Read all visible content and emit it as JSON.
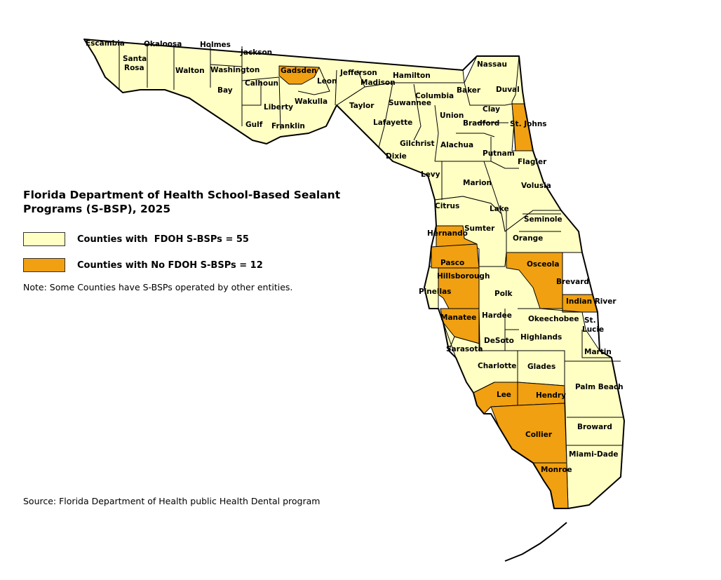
{
  "title_line1": "Florida Department of Health School-Based Sealant",
  "title_line2": "Programs (S-BSP), 2025",
  "legend": {
    "with_label": "Counties with  FDOH S-BSPs = 55",
    "without_label": "Counties with No FDOH S-BSPs = 12",
    "with_color": "#ffffc4",
    "without_color": "#f0a010"
  },
  "note": "Note: Some Counties have S-BSPs operated by other entities.",
  "source": "Source: Florida Department of Health public Health Dental program",
  "counties_with_program": [
    "Escambia",
    "Santa Rosa",
    "Okaloosa",
    "Walton",
    "Holmes",
    "Washington",
    "Jackson",
    "Bay",
    "Calhoun",
    "Liberty",
    "Gulf",
    "Franklin",
    "Wakulla",
    "Leon",
    "Jefferson",
    "Madison",
    "Hamilton",
    "Taylor",
    "Lafayette",
    "Suwannee",
    "Columbia",
    "Baker",
    "Nassau",
    "Duval",
    "Clay",
    "Union",
    "Bradford",
    "Dixie",
    "Gilchrist",
    "Alachua",
    "Putnam",
    "Flagler",
    "Levy",
    "Marion",
    "Volusia",
    "Citrus",
    "Lake",
    "Sumter",
    "Seminole",
    "Orange",
    "Brevard",
    "Polk",
    "Pinellas",
    "Hardee",
    "Okeechobee",
    "St. Lucie",
    "DeSoto",
    "Highlands",
    "Sarasota",
    "Charlotte",
    "Glades",
    "Martin",
    "Palm Beach",
    "Broward",
    "Miami-Dade"
  ],
  "counties_without_program": [
    "Gadsden",
    "St. Johns",
    "Hernando",
    "Pasco",
    "Hillsborough",
    "Manatee",
    "Osceola",
    "Indian River",
    "Lee",
    "Hendry",
    "Collier",
    "Monroe"
  ],
  "labels": {
    "escambia": "Escambia",
    "santa_rosa_1": "Santa",
    "santa_rosa_2": "Rosa",
    "okaloosa": "Okaloosa",
    "walton": "Walton",
    "holmes": "Holmes",
    "washington": "Washington",
    "jackson": "Jackson",
    "bay": "Bay",
    "calhoun": "Calhoun",
    "liberty": "Liberty",
    "gulf": "Gulf",
    "franklin": "Franklin",
    "gadsden": "Gadsden",
    "wakulla": "Wakulla",
    "leon": "Leon",
    "jefferson": "Jefferson",
    "madison": "Madison",
    "hamilton": "Hamilton",
    "taylor": "Taylor",
    "lafayette": "Lafayette",
    "suwannee": "Suwannee",
    "columbia": "Columbia",
    "baker": "Baker",
    "nassau": "Nassau",
    "duval": "Duval",
    "clay": "Clay",
    "union": "Union",
    "bradford": "Bradford",
    "st_johns": "St. Johns",
    "dixie": "Dixie",
    "gilchrist": "Gilchrist",
    "alachua": "Alachua",
    "putnam": "Putnam",
    "flagler": "Flagler",
    "levy": "Levy",
    "marion": "Marion",
    "volusia": "Volusia",
    "citrus": "Citrus",
    "lake": "Lake",
    "hernando": "Hernando",
    "sumter": "Sumter",
    "seminole": "Seminole",
    "orange": "Orange",
    "pasco": "Pasco",
    "osceola": "Osceola",
    "hillsborough": "Hillsborough",
    "brevard": "Brevard",
    "pinellas": "Pinellas",
    "polk": "Polk",
    "indian_river": "Indian River",
    "manatee": "Manatee",
    "hardee": "Hardee",
    "okeechobee": "Okeechobee",
    "st_lucie_1": "St.",
    "st_lucie_2": "Lucie",
    "highlands": "Highlands",
    "desoto": "DeSoto",
    "sarasota": "Sarasota",
    "martin": "Martin",
    "charlotte": "Charlotte",
    "glades": "Glades",
    "palm_beach": "Palm Beach",
    "lee": "Lee",
    "hendry": "Hendry",
    "broward": "Broward",
    "collier": "Collier",
    "miami_dade": "Miami-Dade",
    "monroe": "Monroe"
  }
}
